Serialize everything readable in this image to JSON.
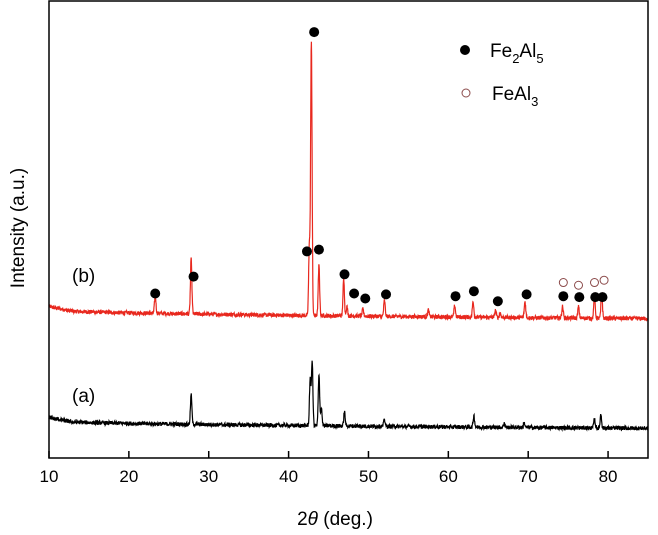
{
  "chart_data": {
    "type": "line",
    "title": "",
    "xlabel": "2θ (deg.)",
    "xlabel_parts": {
      "prefix": "2",
      "symbol": "θ",
      "suffix": " (deg.)"
    },
    "ylabel": "Intensity (a.u.)",
    "xlim": [
      10,
      85
    ],
    "ylim": [
      0,
      100
    ],
    "xticks": [
      10,
      20,
      30,
      40,
      50,
      60,
      70,
      80
    ],
    "grid": false,
    "legend_position": "top-right",
    "legend": [
      {
        "marker": "filled-circle",
        "base": "Fe",
        "sub1": "2",
        "mid": "Al",
        "sub2": "5",
        "label": "Fe2Al5",
        "color": "#000000"
      },
      {
        "marker": "open-circle",
        "base": "FeAl",
        "sub1": "3",
        "mid": "",
        "sub2": "",
        "label": "FeAl3",
        "color": "#8b4a4a"
      }
    ],
    "series": [
      {
        "label": "(b)",
        "color": "#e8281e",
        "baseline": [
          32.5,
          30.5
        ],
        "peaks": [
          [
            23.3,
            4
          ],
          [
            27.8,
            12
          ],
          [
            42.6,
            15
          ],
          [
            42.85,
            60
          ],
          [
            43.8,
            11
          ],
          [
            46.9,
            8
          ],
          [
            47.3,
            2
          ],
          [
            49.3,
            1.5
          ],
          [
            52.0,
            3.5
          ],
          [
            57.5,
            1.5
          ],
          [
            60.8,
            2.5
          ],
          [
            63.1,
            3.5
          ],
          [
            65.9,
            1.5
          ],
          [
            66.5,
            1
          ],
          [
            69.6,
            3.5
          ],
          [
            74.3,
            2.5
          ],
          [
            76.3,
            2.5
          ],
          [
            78.3,
            5
          ],
          [
            79.2,
            5.5
          ]
        ]
      },
      {
        "label": "(a)",
        "color": "#000000",
        "baseline": [
          8.2,
          6.5
        ],
        "peaks": [
          [
            27.8,
            6.5
          ],
          [
            42.7,
            10
          ],
          [
            42.95,
            14
          ],
          [
            43.8,
            11
          ],
          [
            44.1,
            4
          ],
          [
            47.0,
            3
          ],
          [
            52.0,
            1.5
          ],
          [
            63.2,
            2.5
          ],
          [
            67.0,
            1
          ],
          [
            69.5,
            1
          ],
          [
            78.3,
            2
          ],
          [
            79.1,
            3
          ]
        ]
      }
    ],
    "markers": {
      "Fe2Al5": [
        [
          23.3,
          36
        ],
        [
          28.1,
          39.7
        ],
        [
          43.2,
          93.2
        ],
        [
          42.3,
          45.2
        ],
        [
          43.8,
          45.6
        ],
        [
          47.0,
          40.2
        ],
        [
          48.2,
          36
        ],
        [
          49.6,
          34.9
        ],
        [
          52.2,
          35.8
        ],
        [
          60.9,
          35.4
        ],
        [
          63.2,
          36.5
        ],
        [
          66.2,
          34.3
        ],
        [
          69.8,
          35.8
        ],
        [
          74.4,
          35.4
        ],
        [
          76.4,
          35.2
        ],
        [
          78.4,
          35.2
        ],
        [
          79.3,
          35.2
        ]
      ],
      "FeAl3": [
        [
          74.4,
          38.4
        ],
        [
          76.3,
          37.8
        ],
        [
          78.3,
          38.4
        ],
        [
          79.5,
          38.9
        ]
      ]
    }
  }
}
